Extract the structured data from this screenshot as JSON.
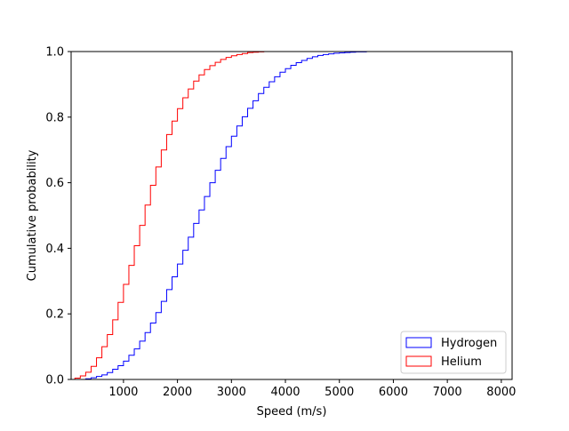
{
  "chart_data": {
    "type": "step",
    "xlabel": "Speed (m/s)",
    "ylabel": "Cumulative probability",
    "xlim": [
      30,
      8200
    ],
    "ylim": [
      0,
      1.0
    ],
    "xticks": [
      1000,
      2000,
      3000,
      4000,
      5000,
      6000,
      7000,
      8000
    ],
    "xtick_labels": [
      "1000",
      "2000",
      "3000",
      "4000",
      "5000",
      "6000",
      "7000",
      "8000"
    ],
    "yticks": [
      0.0,
      0.2,
      0.4,
      0.6,
      0.8,
      1.0
    ],
    "ytick_labels": [
      "0.0",
      "0.2",
      "0.4",
      "0.6",
      "0.8",
      "1.0"
    ],
    "grid": false,
    "legend_position": "lower-right",
    "series": [
      {
        "name": "Hydrogen",
        "color": "#0000ff",
        "x": [
          100,
          200,
          300,
          400,
          500,
          600,
          700,
          800,
          900,
          1000,
          1100,
          1200,
          1300,
          1400,
          1500,
          1600,
          1700,
          1800,
          1900,
          2000,
          2100,
          2200,
          2300,
          2400,
          2500,
          2600,
          2700,
          2800,
          2900,
          3000,
          3100,
          3200,
          3300,
          3400,
          3500,
          3600,
          3700,
          3800,
          3900,
          4000,
          4100,
          4200,
          4300,
          4400,
          4500,
          4600,
          4700,
          4800,
          4900,
          5000,
          5100,
          5200,
          5300,
          5400,
          5500,
          5600,
          5700,
          5800,
          5900,
          6000,
          6100,
          6200,
          6300,
          6400,
          6500,
          6600,
          6700,
          6800,
          6900,
          7000,
          7100,
          7200,
          7300,
          7400,
          7500,
          7600,
          7700,
          7800,
          7900,
          8000,
          8100,
          8200
        ],
        "y": [
          0.0,
          0.0,
          0.002,
          0.005,
          0.009,
          0.014,
          0.021,
          0.031,
          0.042,
          0.056,
          0.074,
          0.093,
          0.117,
          0.143,
          0.172,
          0.204,
          0.238,
          0.274,
          0.313,
          0.352,
          0.394,
          0.434,
          0.476,
          0.517,
          0.558,
          0.6,
          0.638,
          0.674,
          0.71,
          0.742,
          0.773,
          0.801,
          0.827,
          0.85,
          0.872,
          0.891,
          0.908,
          0.923,
          0.937,
          0.948,
          0.958,
          0.966,
          0.973,
          0.979,
          0.984,
          0.988,
          0.991,
          0.993,
          0.995,
          0.996,
          0.997,
          0.998,
          0.999,
          0.999,
          1.0,
          1.0,
          1.0,
          1.0,
          1.0,
          1.0,
          1.0,
          1.0,
          1.0,
          1.0,
          1.0,
          1.0,
          1.0,
          1.0,
          1.0,
          1.0,
          1.0,
          1.0,
          1.0,
          1.0,
          1.0,
          1.0,
          1.0,
          1.0,
          1.0,
          1.0,
          1.0,
          1.0
        ]
      },
      {
        "name": "Helium",
        "color": "#ff0000",
        "x": [
          100,
          200,
          300,
          400,
          500,
          600,
          700,
          800,
          900,
          1000,
          1100,
          1200,
          1300,
          1400,
          1500,
          1600,
          1700,
          1800,
          1900,
          2000,
          2100,
          2200,
          2300,
          2400,
          2500,
          2600,
          2700,
          2800,
          2900,
          3000,
          3100,
          3200,
          3300,
          3400,
          3500,
          3600,
          3700,
          3800,
          3900,
          4000,
          4100,
          4200,
          4300,
          4400,
          4500,
          4600,
          4700,
          4800,
          4900,
          5000,
          5100,
          5200,
          5300,
          5400,
          5500,
          5600,
          5700,
          5800,
          5900,
          6000,
          6100,
          6200,
          6300,
          6400,
          6500,
          6600,
          6700,
          6800,
          6900,
          7000,
          7100,
          7200,
          7300,
          7400,
          7500,
          7600,
          7700,
          7800,
          7900,
          8000,
          8100,
          8200
        ],
        "y": [
          0.004,
          0.011,
          0.022,
          0.04,
          0.066,
          0.1,
          0.137,
          0.182,
          0.235,
          0.29,
          0.348,
          0.408,
          0.47,
          0.532,
          0.592,
          0.648,
          0.7,
          0.747,
          0.788,
          0.826,
          0.859,
          0.886,
          0.91,
          0.929,
          0.945,
          0.957,
          0.967,
          0.976,
          0.982,
          0.987,
          0.991,
          0.994,
          0.997,
          0.998,
          0.999,
          1.0,
          1.0,
          1.0,
          1.0,
          1.0,
          1.0,
          1.0,
          1.0,
          1.0,
          1.0,
          1.0,
          1.0,
          1.0,
          1.0,
          1.0,
          1.0,
          1.0,
          1.0,
          1.0,
          1.0,
          1.0,
          1.0,
          1.0,
          1.0,
          1.0,
          1.0,
          1.0,
          1.0,
          1.0,
          1.0,
          1.0,
          1.0,
          1.0,
          1.0,
          1.0,
          1.0,
          1.0,
          1.0,
          1.0,
          1.0,
          1.0,
          1.0,
          1.0,
          1.0,
          1.0,
          1.0,
          1.0
        ]
      }
    ]
  }
}
